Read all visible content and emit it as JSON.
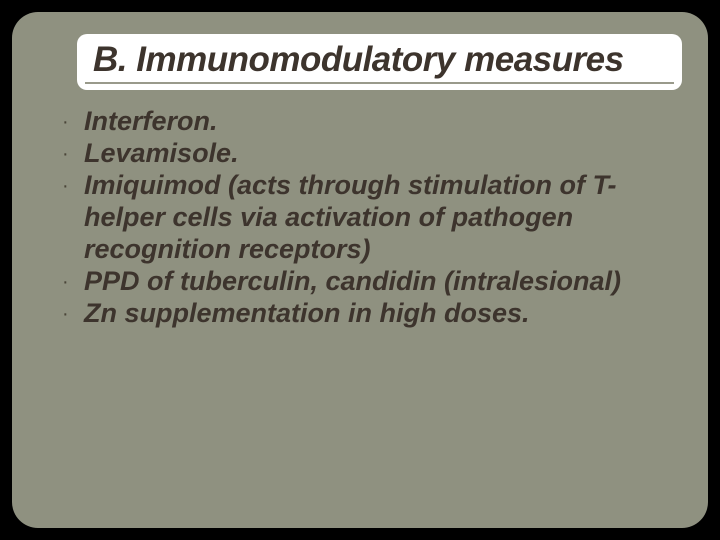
{
  "slide": {
    "background_outer": "#000000",
    "background_inner": "#8f9180",
    "border_radius": 26,
    "title": {
      "text": "B. Immunomodulatory measures",
      "background": "#ffffff",
      "color": "#3d342d",
      "fontsize": 35,
      "font_style": "bold italic",
      "underline_color": "#999a8b"
    },
    "body": {
      "color": "#3d342d",
      "fontsize": 27,
      "font_style": "bold italic",
      "bullet_char": "·",
      "items": [
        "Interferon.",
        "Levamisole.",
        "Imiquimod (acts through stimulation of T-helper cells via activation of pathogen recognition receptors)",
        "PPD of tuberculin, candidin (intralesional)",
        "Zn supplementation in high doses."
      ]
    }
  }
}
